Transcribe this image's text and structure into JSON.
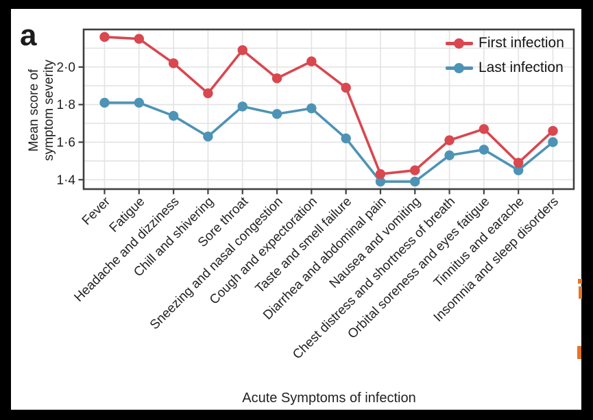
{
  "panel_label": "a",
  "colors": {
    "first_infection": "#d9474f",
    "last_infection": "#4d93b6",
    "grid": "#e4e4e4",
    "border": "#3f3f3f",
    "text": "#222222",
    "panel_bg": "#ffffff",
    "frame_bg": "#000000",
    "artifact": "#e2762c"
  },
  "chart_data": {
    "type": "line",
    "title": "",
    "xlabel": "Acute Symptoms of infection",
    "ylabel": "Mean score of symptom severity",
    "ylabel_lines": [
      "Mean score of",
      "symptom severity"
    ],
    "ylim": [
      1.35,
      2.2
    ],
    "yticks": [
      {
        "value": 1.4,
        "label": "1·4"
      },
      {
        "value": 1.6,
        "label": "1·6"
      },
      {
        "value": 1.8,
        "label": "1·8"
      },
      {
        "value": 2.0,
        "label": "2·0"
      }
    ],
    "grid": "horizontal every 0.1, vertical at each category",
    "legend_position": "top-right inside plot",
    "categories": [
      "Fever",
      "Fatigue",
      "Headache and dizziness",
      "Chill and shivering",
      "Sore throat",
      "Sneezing and nasal congestion",
      "Cough and expectoration",
      "Taste and smell failure",
      "Diarrhea and abdominal pain",
      "Nausea and vomiting",
      "Chest distress and shortness of breath",
      "Orbital soreness and eyes fatigue",
      "Tinnitus and earache",
      "Insomnia and sleep disorders"
    ],
    "series": [
      {
        "name": "First infection",
        "color": "#d9474f",
        "values": [
          2.16,
          2.15,
          2.02,
          1.86,
          2.09,
          1.94,
          2.03,
          1.89,
          1.43,
          1.45,
          1.61,
          1.67,
          1.49,
          1.66
        ]
      },
      {
        "name": "Last infection",
        "color": "#4d93b6",
        "values": [
          1.81,
          1.81,
          1.74,
          1.63,
          1.79,
          1.75,
          1.78,
          1.62,
          1.39,
          1.39,
          1.53,
          1.56,
          1.45,
          1.6
        ]
      }
    ]
  }
}
